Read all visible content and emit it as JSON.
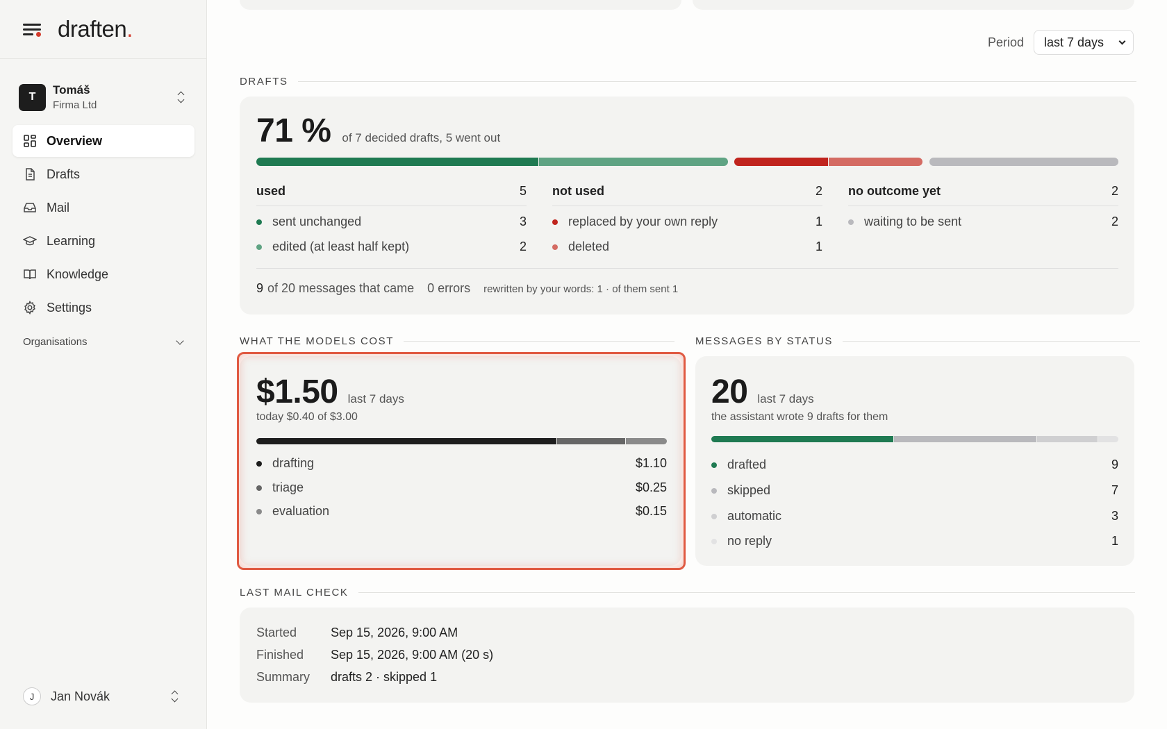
{
  "app": {
    "name": "draften",
    "name_accent": "."
  },
  "account": {
    "initial": "T",
    "name": "Tomáš",
    "org": "Firma Ltd"
  },
  "nav": [
    {
      "label": "Overview",
      "icon": "grid-icon",
      "active": true
    },
    {
      "label": "Drafts",
      "icon": "document-icon"
    },
    {
      "label": "Mail",
      "icon": "inbox-icon"
    },
    {
      "label": "Learning",
      "icon": "graduation-cap-icon"
    },
    {
      "label": "Knowledge",
      "icon": "book-icon"
    },
    {
      "label": "Settings",
      "icon": "gear-icon"
    }
  ],
  "organisations_label": "Organisations",
  "user": {
    "initial": "J",
    "name": "Jan Novák"
  },
  "period": {
    "label": "Period",
    "selected": "last 7 days"
  },
  "drafts": {
    "section_title": "DRAFTS",
    "percent": "71 %",
    "summary": "of 7 decided drafts, 5 went out",
    "used": {
      "title": "used",
      "count": "5",
      "rows": [
        {
          "label": "sent unchanged",
          "value": "3"
        },
        {
          "label": "edited (at least half kept)",
          "value": "2"
        }
      ]
    },
    "not_used": {
      "title": "not used",
      "count": "2",
      "rows": [
        {
          "label": "replaced by your own reply",
          "value": "1"
        },
        {
          "label": "deleted",
          "value": "1"
        }
      ]
    },
    "no_outcome": {
      "title": "no outcome yet",
      "count": "2",
      "rows": [
        {
          "label": "waiting to be sent",
          "value": "2"
        }
      ]
    },
    "footer": {
      "messages_count": "9",
      "messages_text": "of 20 messages that came",
      "errors": "0 errors",
      "rewritten": "rewritten by your words: 1 · of them sent 1"
    },
    "bar_values": [
      3,
      2,
      1,
      1,
      2
    ]
  },
  "costs": {
    "section_title": "WHAT THE MODELS COST",
    "total": "$1.50",
    "period": "last 7 days",
    "today": "today $0.40 of $3.00",
    "items": [
      {
        "label": "drafting",
        "value": "$1.10",
        "amount": 1.1
      },
      {
        "label": "triage",
        "value": "$0.25",
        "amount": 0.25
      },
      {
        "label": "evaluation",
        "value": "$0.15",
        "amount": 0.15
      }
    ]
  },
  "status": {
    "section_title": "MESSAGES BY STATUS",
    "total": "20",
    "period": "last 7 days",
    "subtitle": "the assistant wrote 9 drafts for them",
    "items": [
      {
        "label": "drafted",
        "value": "9",
        "count": 9
      },
      {
        "label": "skipped",
        "value": "7",
        "count": 7
      },
      {
        "label": "automatic",
        "value": "3",
        "count": 3
      },
      {
        "label": "no reply",
        "value": "1",
        "count": 1
      }
    ]
  },
  "mail_check": {
    "section_title": "LAST MAIL CHECK",
    "rows": [
      {
        "key": "Started",
        "value": "Sep 15, 2026, 9:00 AM"
      },
      {
        "key": "Finished",
        "value": "Sep 15, 2026, 9:00 AM (20 s)"
      },
      {
        "key": "Summary",
        "value": "drafts 2 · skipped 1"
      }
    ]
  },
  "colors": {
    "used_dark": "#1f7a52",
    "used_light": "#5fa383",
    "notused_dark": "#c0241e",
    "notused_light": "#d46b63",
    "pending": "#b9b9bd",
    "cost_dark": "#1d1d1d",
    "cost_mid": "#666666",
    "cost_light": "#8a8a8a"
  }
}
